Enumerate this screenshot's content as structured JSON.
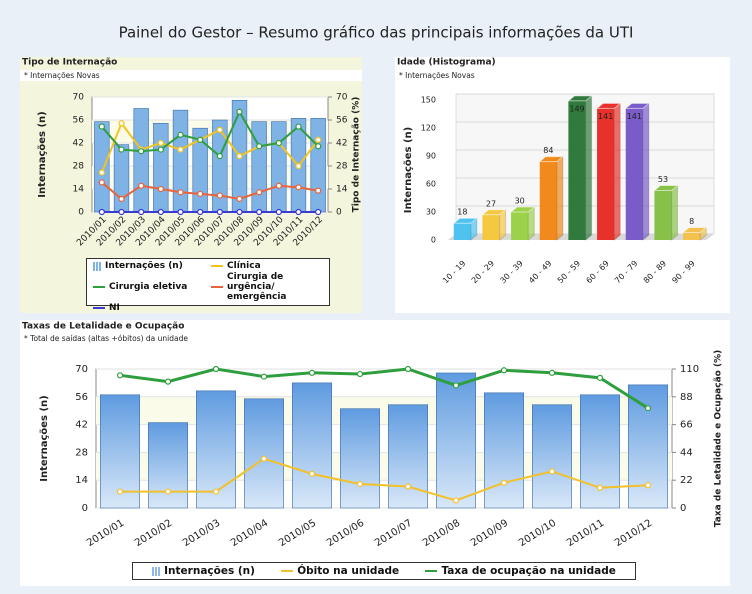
{
  "page_title": "Painel do Gestor – Resumo gráfico das principais informações da UTI",
  "chart_data": [
    {
      "type": "bar",
      "title": "Tipo de Internação",
      "subtitle": "* Internações Novas",
      "y_label": "Internações (n)",
      "y2_label": "Tipo de Internação (%)",
      "categories": [
        "2010/01",
        "2010/02",
        "2010/03",
        "2010/04",
        "2010/05",
        "2010/06",
        "2010/07",
        "2010/08",
        "2010/09",
        "2010/10",
        "2010/11",
        "2010/12"
      ],
      "ylim": [
        0,
        70
      ],
      "yticks": [
        0,
        14,
        28,
        42,
        56,
        70
      ],
      "y2lim": [
        0,
        70
      ],
      "y2ticks": [
        0,
        14,
        28,
        42,
        56,
        70
      ],
      "grid": true,
      "series": [
        {
          "name": "Internações (n)",
          "type": "bar",
          "color": "#7fb2e5",
          "values": [
            55,
            41,
            63,
            54,
            62,
            51,
            56,
            68,
            55,
            55,
            57,
            57
          ]
        },
        {
          "name": "Clínica",
          "type": "line",
          "axis": "y2",
          "color": "#f2c31c",
          "values": [
            24,
            54,
            38,
            42,
            38,
            44,
            50,
            34,
            40,
            42,
            28,
            44
          ]
        },
        {
          "name": "Cirurgia eletiva",
          "type": "line",
          "axis": "y2",
          "color": "#2e9e3e",
          "values": [
            52,
            38,
            37,
            38,
            47,
            44,
            34,
            61,
            40,
            42,
            52,
            40
          ]
        },
        {
          "name": "Cirurgia de urgência/ emergência",
          "type": "line",
          "axis": "y2",
          "color": "#e8643c",
          "values": [
            18,
            8,
            16,
            14,
            12,
            11,
            10,
            8,
            12,
            16,
            15,
            13
          ]
        },
        {
          "name": "NI",
          "type": "line",
          "axis": "y2",
          "color": "#3b3bd0",
          "values": [
            0,
            0,
            0,
            0,
            0,
            0,
            0,
            0,
            0,
            0,
            0,
            0
          ]
        }
      ]
    },
    {
      "type": "bar3d",
      "title": "Idade (Histograma)",
      "subtitle": "* Internações Novas",
      "y_label": "Internações (n)",
      "categories": [
        "10 - 19",
        "20 - 29",
        "30 - 39",
        "40 - 49",
        "50 - 59",
        "60 - 69",
        "70 - 79",
        "80 - 89",
        "90 - 99"
      ],
      "values": [
        18,
        27,
        30,
        84,
        149,
        141,
        141,
        53,
        8
      ],
      "colors": [
        "#4fc3f0",
        "#f5c842",
        "#9cd14a",
        "#f08a1c",
        "#2f7a3c",
        "#e8312a",
        "#7a5cc8",
        "#86c24a",
        "#f2c14e"
      ],
      "ylim": [
        0,
        150
      ],
      "yticks": [
        0,
        30,
        60,
        90,
        120,
        150
      ],
      "grid": true
    },
    {
      "type": "bar",
      "title": "Taxas de Letalidade e Ocupação",
      "subtitle": "* Total de saídas (altas +óbitos) da unidade",
      "y_label": "Internações (n)",
      "y2_label": "Taxa de Letalidade e Ocupação (%)",
      "categories": [
        "2010/01",
        "2010/02",
        "2010/03",
        "2010/04",
        "2010/05",
        "2010/06",
        "2010/07",
        "2010/08",
        "2010/09",
        "2010/10",
        "2010/11",
        "2010/12"
      ],
      "ylim": [
        0,
        70
      ],
      "yticks": [
        0,
        14,
        28,
        42,
        56,
        70
      ],
      "y2lim": [
        0,
        110
      ],
      "y2ticks": [
        0,
        22,
        44,
        66,
        88,
        110
      ],
      "grid": true,
      "series": [
        {
          "name": "Internações (n)",
          "type": "bar",
          "color": "#8db7e6",
          "values": [
            57,
            43,
            59,
            55,
            63,
            50,
            52,
            68,
            58,
            52,
            57,
            62
          ]
        },
        {
          "name": "Óbito na unidade",
          "type": "line",
          "axis": "y2",
          "color": "#f2c02b",
          "values": [
            13,
            13,
            13,
            39,
            27,
            19,
            17,
            6,
            20,
            29,
            16,
            18
          ]
        },
        {
          "name": "Taxa de ocupação na unidade",
          "type": "line",
          "axis": "y2",
          "color": "#2e9e3e",
          "values": [
            105,
            100,
            110,
            104,
            107,
            106,
            110,
            97,
            109,
            107,
            103,
            79
          ]
        }
      ]
    }
  ]
}
